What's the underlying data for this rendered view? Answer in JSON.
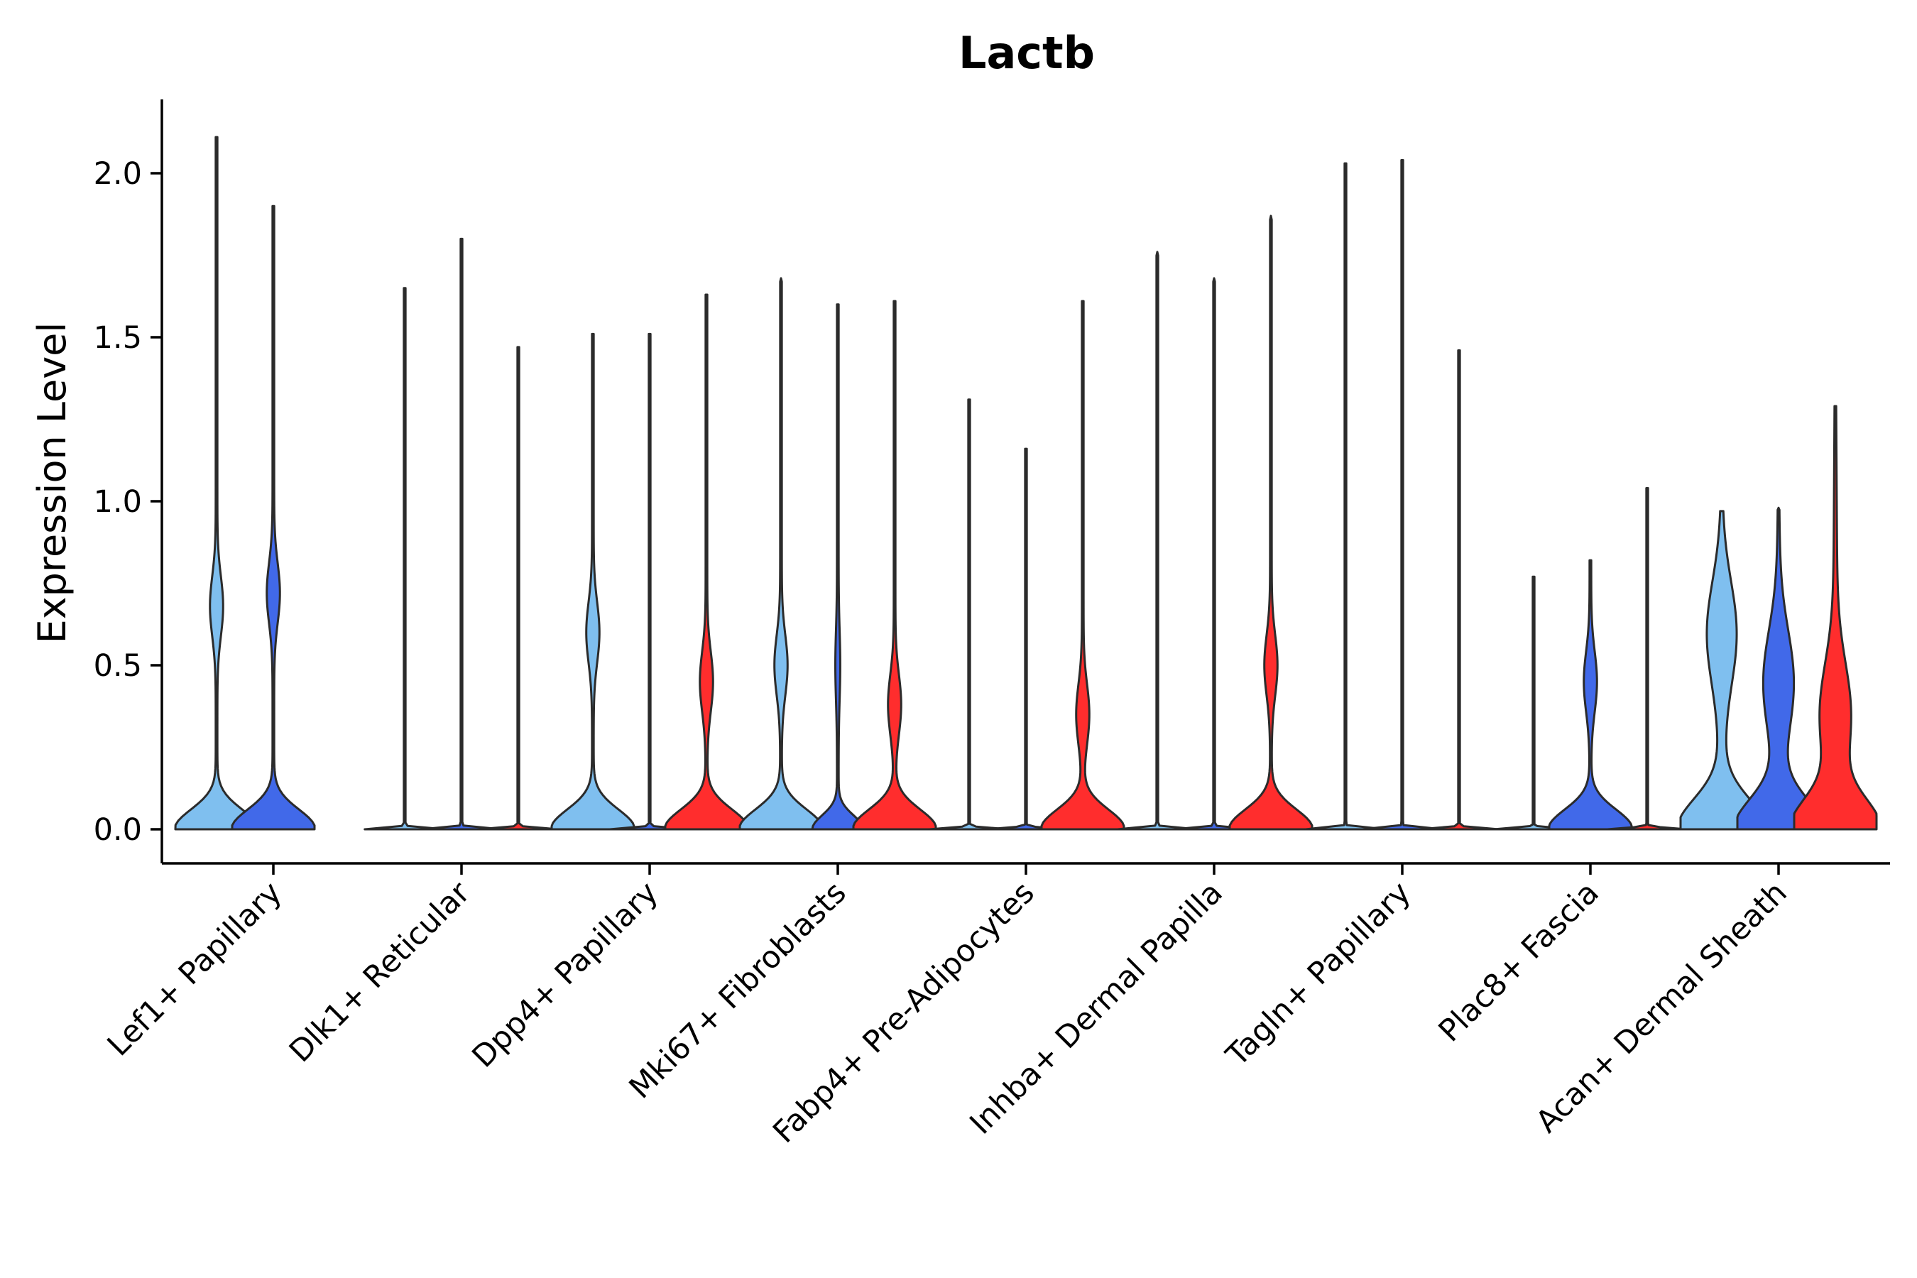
{
  "chart_data": {
    "type": "violin",
    "title": "Lactb",
    "ylabel": "Expression Level",
    "xlabel": "",
    "ylim": [
      -0.1,
      2.22
    ],
    "yticks": [
      "0.0",
      "0.5",
      "1.0",
      "1.5",
      "2.0"
    ],
    "ytick_values": [
      0,
      0.5,
      1.0,
      1.5,
      2.0
    ],
    "grid": false,
    "legend": "none",
    "series_colors": [
      "#7fbfef",
      "#4169e9",
      "#ff2d2d"
    ],
    "categories": [
      "Lef1+ Papillary",
      "Dlk1+ Reticular",
      "Dpp4+ Papillary",
      "Mki67+ Fibroblasts",
      "Fabp4+ Pre-Adipocytes",
      "Inhba+ Dermal Papilla",
      "Tagln+ Papillary",
      "Plac8+ Fascia",
      "Acan+ Dermal Sheath"
    ],
    "groups": [
      {
        "category": "Lef1+ Papillary",
        "violins": [
          {
            "series": 0,
            "max": 2.11,
            "shape": "bimodal",
            "secondary_peak": 0.68
          },
          {
            "series": 1,
            "max": 1.9,
            "shape": "bimodal",
            "secondary_peak": 0.72
          }
        ]
      },
      {
        "category": "Dlk1+ Reticular",
        "violins": [
          {
            "series": 0,
            "max": 1.65,
            "shape": "flat"
          },
          {
            "series": 1,
            "max": 1.8,
            "shape": "flat"
          },
          {
            "series": 2,
            "max": 1.47,
            "shape": "flat"
          }
        ]
      },
      {
        "category": "Dpp4+ Papillary",
        "violins": [
          {
            "series": 0,
            "max": 1.51,
            "shape": "bimodal",
            "secondary_peak": 0.6
          },
          {
            "series": 1,
            "max": 1.51,
            "shape": "flat"
          },
          {
            "series": 2,
            "max": 1.63,
            "shape": "bimodal",
            "secondary_peak": 0.45
          }
        ]
      },
      {
        "category": "Mki67+ Fibroblasts",
        "violins": [
          {
            "series": 0,
            "max": 1.68,
            "shape": "bimodal",
            "secondary_peak": 0.5
          },
          {
            "series": 1,
            "max": 1.6,
            "shape": "low"
          },
          {
            "series": 2,
            "max": 1.61,
            "shape": "bimodal",
            "secondary_peak": 0.38
          }
        ]
      },
      {
        "category": "Fabp4+ Pre-Adipocytes",
        "violins": [
          {
            "series": 0,
            "max": 1.31,
            "shape": "flat"
          },
          {
            "series": 1,
            "max": 1.16,
            "shape": "flat"
          },
          {
            "series": 2,
            "max": 1.61,
            "shape": "bimodal",
            "secondary_peak": 0.35
          }
        ]
      },
      {
        "category": "Inhba+ Dermal Papilla",
        "violins": [
          {
            "series": 0,
            "max": 1.76,
            "shape": "flat"
          },
          {
            "series": 1,
            "max": 1.68,
            "shape": "flat"
          },
          {
            "series": 2,
            "max": 1.87,
            "shape": "bimodal",
            "secondary_peak": 0.5
          }
        ]
      },
      {
        "category": "Tagln+ Papillary",
        "violins": [
          {
            "series": 0,
            "max": 2.03,
            "shape": "flat"
          },
          {
            "series": 1,
            "max": 2.04,
            "shape": "flat"
          },
          {
            "series": 2,
            "max": 1.46,
            "shape": "flat"
          }
        ]
      },
      {
        "category": "Plac8+ Fascia",
        "violins": [
          {
            "series": 0,
            "max": 0.77,
            "shape": "flat"
          },
          {
            "series": 1,
            "max": 0.82,
            "shape": "bimodal",
            "secondary_peak": 0.45
          },
          {
            "series": 2,
            "max": 1.04,
            "shape": "flat"
          }
        ]
      },
      {
        "category": "Acan+ Dermal Sheath",
        "violins": [
          {
            "series": 0,
            "max": 0.97,
            "shape": "wide",
            "secondary_peak": 0.6
          },
          {
            "series": 1,
            "max": 0.98,
            "shape": "wide",
            "secondary_peak": 0.45
          },
          {
            "series": 2,
            "max": 1.29,
            "shape": "wide",
            "secondary_peak": 0.35
          }
        ]
      }
    ]
  }
}
